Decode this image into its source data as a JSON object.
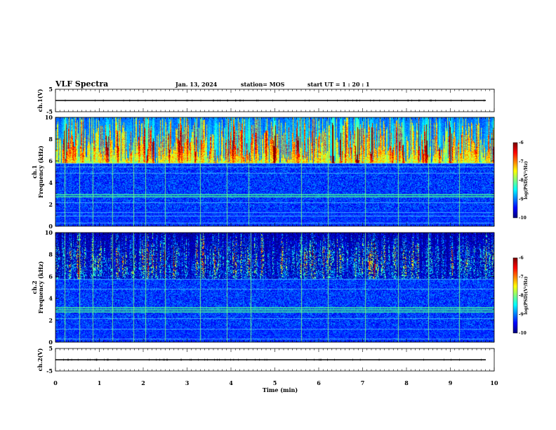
{
  "header": {
    "title": "VLF Spectra",
    "date": "Jan. 13, 2024",
    "station": "station= MOS",
    "start": "start UT =  1 : 20 : 1"
  },
  "chart_data": {
    "type": "heatmap",
    "xlabel": "Time (min)",
    "xlim": [
      0,
      10
    ],
    "x_ticks": [
      "0",
      "1",
      "2",
      "3",
      "4",
      "5",
      "6",
      "7",
      "8",
      "9",
      "10"
    ],
    "panels": [
      {
        "id": "ch1-voltage",
        "kind": "line",
        "ylabel": "ch.1(V)",
        "ylim": [
          -5,
          5
        ],
        "y_ticks": [
          "5",
          "-5"
        ],
        "trace_value": 0
      },
      {
        "id": "ch1-spectrogram",
        "kind": "heatmap",
        "ylabel_line1": "ch.1",
        "ylabel_line2": "Frequency (kHz)",
        "ylim": [
          0,
          10
        ],
        "y_ticks": [
          "0",
          "2",
          "4",
          "6",
          "8",
          "10"
        ],
        "colorbar": {
          "label": "log(PSD)(V²/Hz)",
          "range": [
            -10,
            -6
          ],
          "ticks": [
            "-6",
            "-7",
            "-8",
            "-9",
            "-10"
          ]
        },
        "bands_khz": [
          0.3,
          1.0,
          1.3,
          2.2,
          2.8,
          3.0,
          4.9,
          5.5,
          5.8
        ],
        "sferic_times_min": [
          0.2,
          0.55,
          0.85,
          1.3,
          1.78,
          2.05,
          2.5,
          3.3,
          3.9,
          4.4,
          5.6,
          6.2,
          7.05,
          7.8,
          8.5,
          9.2
        ]
      },
      {
        "id": "ch2-spectrogram",
        "kind": "heatmap",
        "ylabel_line1": "ch.2",
        "ylabel_line2": "Frequency (kHz)",
        "ylim": [
          0,
          10
        ],
        "y_ticks": [
          "0",
          "2",
          "4",
          "6",
          "8",
          "10"
        ],
        "colorbar": {
          "label": "log(PSD)(V²/Hz)",
          "range": [
            -10,
            -6
          ],
          "ticks": [
            "-6",
            "-7",
            "-8",
            "-9",
            "-10"
          ]
        },
        "bands_khz": [
          0.3,
          1.2,
          2.2,
          2.8,
          3.0,
          3.2,
          4.9,
          5.8
        ],
        "sferic_times_min": [
          0.2,
          0.55,
          0.85,
          1.3,
          1.78,
          2.05,
          2.5,
          3.3,
          3.9,
          4.45,
          5.6,
          6.2,
          7.05,
          7.8,
          8.5,
          9.2
        ]
      },
      {
        "id": "ch2-voltage",
        "kind": "line",
        "ylabel": "ch.2(V)",
        "ylim": [
          -5,
          5
        ],
        "y_ticks": [
          "5",
          "-5"
        ],
        "trace_value": 0
      }
    ]
  }
}
